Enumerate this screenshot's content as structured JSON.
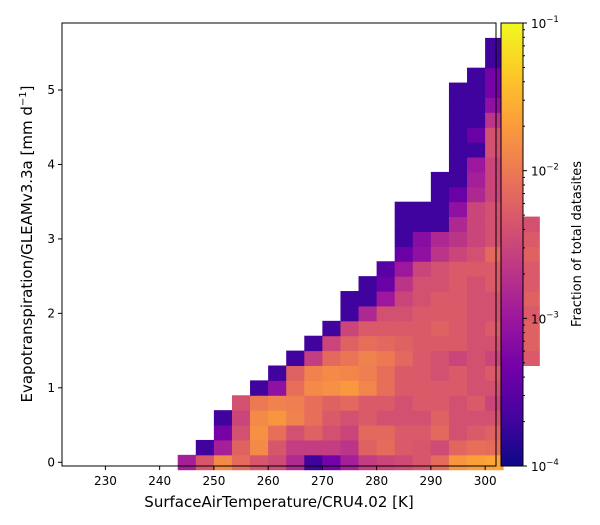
{
  "chart_data": {
    "type": "heatmap",
    "xlabel": "SurfaceAirTemperature/CRU4.02 [K]",
    "ylabel": "Evapotranspiration/GLEAMv3.3a [mm d$^{-1}$]",
    "ylabel_parts": [
      "Evapotranspiration/GLEAMv3.3a [mm d",
      "−1",
      "]"
    ],
    "colorbar_label": "Fraction of total datasites",
    "xlim": [
      222,
      302
    ],
    "ylim": [
      -0.05,
      5.9
    ],
    "x_ticks": [
      230,
      240,
      250,
      260,
      270,
      280,
      290,
      300
    ],
    "y_ticks": [
      0,
      1,
      2,
      3,
      4,
      5
    ],
    "color_scale": "log",
    "colormap": "plasma",
    "clim": [
      0.0001,
      0.1
    ],
    "colorbar_ticks": [
      {
        "base": "10",
        "exp": "−1",
        "value": 0.1
      },
      {
        "base": "10",
        "exp": "−2",
        "value": 0.01
      },
      {
        "base": "10",
        "exp": "−3",
        "value": 0.001
      },
      {
        "base": "10",
        "exp": "−4",
        "value": 0.0001
      }
    ],
    "bin_width_x": 3.333,
    "bin_height_y": 0.2,
    "x_bin_origin": 243.33,
    "rows": [
      {
        "y": 0.0,
        "start": 0,
        "values": [
          0.0012,
          0.0045,
          0.014,
          0.0075,
          0.0045,
          0.0035,
          0.0016,
          0.0002,
          0.0005,
          0.0012,
          0.0025,
          0.003,
          0.0035,
          0.0045,
          0.0075,
          0.018,
          0.022,
          0.024
        ]
      },
      {
        "y": 0.2,
        "start": 1,
        "values": [
          0.0002,
          0.0012,
          0.006,
          0.014,
          0.0045,
          0.0025,
          0.0025,
          0.0025,
          0.002,
          0.006,
          0.0075,
          0.005,
          0.0045,
          0.0035,
          0.0065,
          0.008,
          0.0075
        ]
      },
      {
        "y": 0.4,
        "start": 2,
        "values": [
          0.0005,
          0.004,
          0.016,
          0.008,
          0.004,
          0.006,
          0.004,
          0.003,
          0.007,
          0.007,
          0.005,
          0.005,
          0.007,
          0.004,
          0.005,
          0.006
        ]
      },
      {
        "y": 0.6,
        "start": 2,
        "values": [
          0.0002,
          0.003,
          0.014,
          0.018,
          0.012,
          0.008,
          0.005,
          0.004,
          0.005,
          0.004,
          0.004,
          0.004,
          0.006,
          0.004,
          0.004,
          0.004
        ]
      },
      {
        "y": 0.8,
        "start": 3,
        "values": [
          0.004,
          0.01,
          0.012,
          0.011,
          0.008,
          0.006,
          0.007,
          0.005,
          0.005,
          0.004,
          0.005,
          0.005,
          0.004,
          0.005,
          0.003
        ]
      },
      {
        "y": 1.0,
        "start": 4,
        "values": [
          0.0002,
          0.0008,
          0.008,
          0.014,
          0.016,
          0.019,
          0.013,
          0.008,
          0.005,
          0.005,
          0.005,
          0.005,
          0.004,
          0.004,
          0.004
        ]
      },
      {
        "y": 1.2,
        "start": 5,
        "values": [
          0.0002,
          0.006,
          0.012,
          0.014,
          0.013,
          0.011,
          0.008,
          0.005,
          0.005,
          0.004,
          0.005,
          0.004,
          0.005,
          0.004
        ]
      },
      {
        "y": 1.4,
        "start": 6,
        "values": [
          0.0002,
          0.0025,
          0.007,
          0.009,
          0.012,
          0.01,
          0.007,
          0.005,
          0.004,
          0.003,
          0.004,
          0.003,
          0.004,
          0.005
        ]
      },
      {
        "y": 1.6,
        "start": 7,
        "values": [
          0.0002,
          0.003,
          0.006,
          0.008,
          0.007,
          0.006,
          0.005,
          0.005,
          0.005,
          0.004,
          0.004,
          0.004,
          0.006
        ]
      },
      {
        "y": 1.8,
        "start": 8,
        "values": [
          0.0002,
          0.003,
          0.005,
          0.005,
          0.005,
          0.005,
          0.006,
          0.005,
          0.004,
          0.005,
          0.005,
          0.006
        ]
      },
      {
        "y": 2.0,
        "start": 9,
        "values": [
          0.0002,
          0.0015,
          0.004,
          0.004,
          0.005,
          0.005,
          0.005,
          0.004,
          0.004,
          0.005,
          0.005
        ]
      },
      {
        "y": 2.2,
        "start": 9,
        "values": [
          0.0002,
          0.0002,
          0.001,
          0.003,
          0.004,
          0.005,
          0.005,
          0.004,
          0.004,
          0.005,
          0.006
        ]
      },
      {
        "y": 2.4,
        "start": 10,
        "values": [
          0.0002,
          0.0004,
          0.002,
          0.004,
          0.004,
          0.005,
          0.004,
          0.005,
          0.004,
          0.005
        ]
      },
      {
        "y": 2.6,
        "start": 11,
        "values": [
          0.0003,
          0.001,
          0.003,
          0.004,
          0.005,
          0.005,
          0.005,
          0.004,
          0.005
        ]
      },
      {
        "y": 2.8,
        "start": 12,
        "values": [
          0.0004,
          0.0008,
          0.002,
          0.003,
          0.004,
          0.007,
          0.005,
          0.006
        ]
      },
      {
        "y": 3.0,
        "start": 12,
        "values": [
          0.0002,
          0.0007,
          0.0015,
          0.002,
          0.003,
          0.004,
          0.005,
          0.005
        ]
      },
      {
        "y": 3.2,
        "start": 12,
        "values": [
          0.0002,
          0.0002,
          0.0002,
          0.0015,
          0.003,
          0.004,
          0.005,
          0.004
        ]
      },
      {
        "y": 3.4,
        "start": 12,
        "values": [
          0.0002,
          0.0002,
          0.0002,
          0.0008,
          0.003,
          0.004,
          0.006
        ]
      },
      {
        "y": 3.6,
        "start": 14,
        "values": [
          0.0002,
          0.0004,
          0.0015,
          0.003,
          0.005
        ]
      },
      {
        "y": 3.8,
        "start": 14,
        "values": [
          0.0002,
          0.0002,
          0.0012,
          0.003,
          0.006
        ]
      },
      {
        "y": 4.0,
        "start": 15,
        "values": [
          0.0002,
          0.001,
          0.003,
          0.007
        ]
      },
      {
        "y": 4.2,
        "start": 15,
        "values": [
          0.0002,
          0.0002,
          0.004,
          0.008
        ]
      },
      {
        "y": 4.4,
        "start": 15,
        "values": [
          0.0002,
          0.0004,
          0.004,
          0.006
        ]
      },
      {
        "y": 4.6,
        "start": 15,
        "values": [
          0.0002,
          0.0002,
          0.002,
          0.004
        ]
      },
      {
        "y": 4.8,
        "start": 15,
        "values": [
          0.0002,
          0.0002,
          0.0008,
          0.003
        ]
      },
      {
        "y": 5.0,
        "start": 15,
        "values": [
          0.0002,
          0.0002,
          0.0005,
          0.002
        ]
      },
      {
        "y": 5.2,
        "start": 16,
        "values": [
          0.0002,
          0.0005,
          0.0008
        ]
      },
      {
        "y": 5.4,
        "start": 17,
        "values": [
          0.0002,
          0.0002
        ]
      },
      {
        "y": 5.6,
        "start": 17,
        "values": [
          0.0002,
          null
        ]
      },
      {
        "y": 5.8,
        "start": 18,
        "values": [
          0.0002
        ]
      }
    ]
  }
}
